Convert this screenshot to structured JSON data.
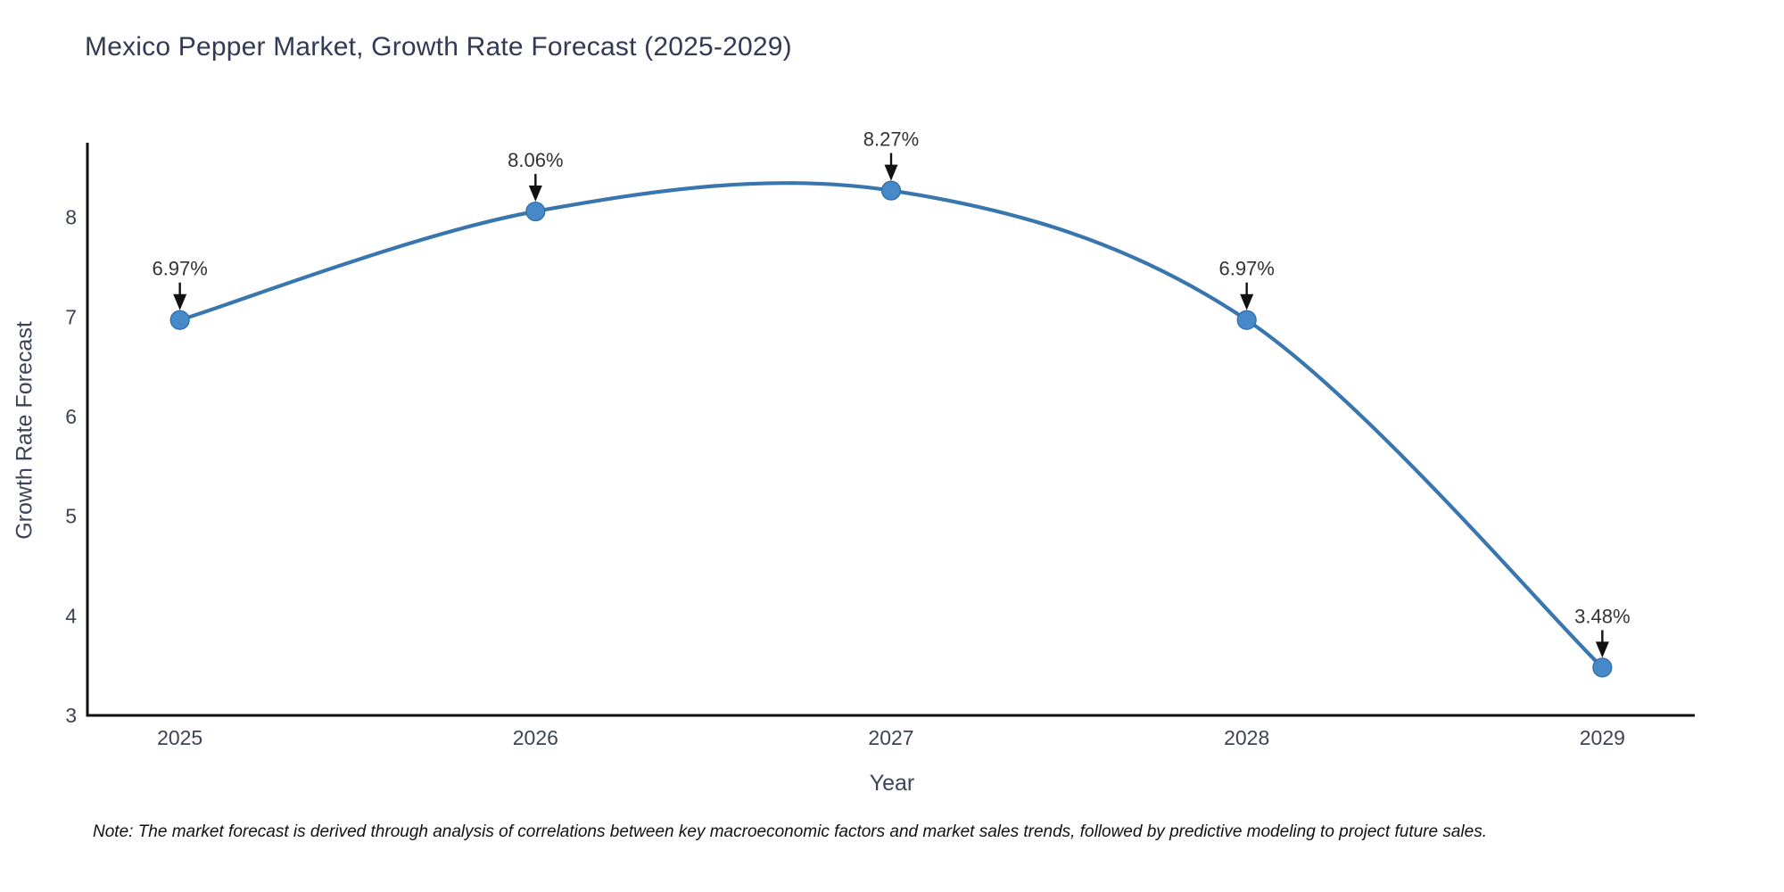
{
  "title": "Mexico Pepper Market, Growth Rate Forecast (2025-2029)",
  "note": "Note: The market forecast is derived through analysis of correlations between key macroeconomic factors and market sales trends, followed by predictive modeling to project future sales.",
  "chart_data": {
    "type": "line",
    "title": "Mexico Pepper Market, Growth Rate Forecast (2025-2029)",
    "xlabel": "Year",
    "ylabel": "Growth Rate Forecast",
    "x": [
      2025,
      2026,
      2027,
      2028,
      2029
    ],
    "values": [
      6.97,
      8.06,
      8.27,
      6.97,
      3.48
    ],
    "point_labels": [
      "6.97%",
      "8.06%",
      "8.27%",
      "6.97%",
      "3.48%"
    ],
    "xticks": [
      "2025",
      "2026",
      "2027",
      "2028",
      "2029"
    ],
    "yticks": [
      3,
      4,
      5,
      6,
      7,
      8
    ],
    "xlim": [
      2024.74,
      2029.26
    ],
    "ylim": [
      3,
      8.75
    ],
    "grid": false,
    "legend": "none",
    "smooth": true,
    "line_color": "#3a76ae",
    "marker_color": "#4689c8",
    "marker_edge_color": "#2f6ca5",
    "axis_color": "#111111",
    "annotation_color": "#111111"
  }
}
